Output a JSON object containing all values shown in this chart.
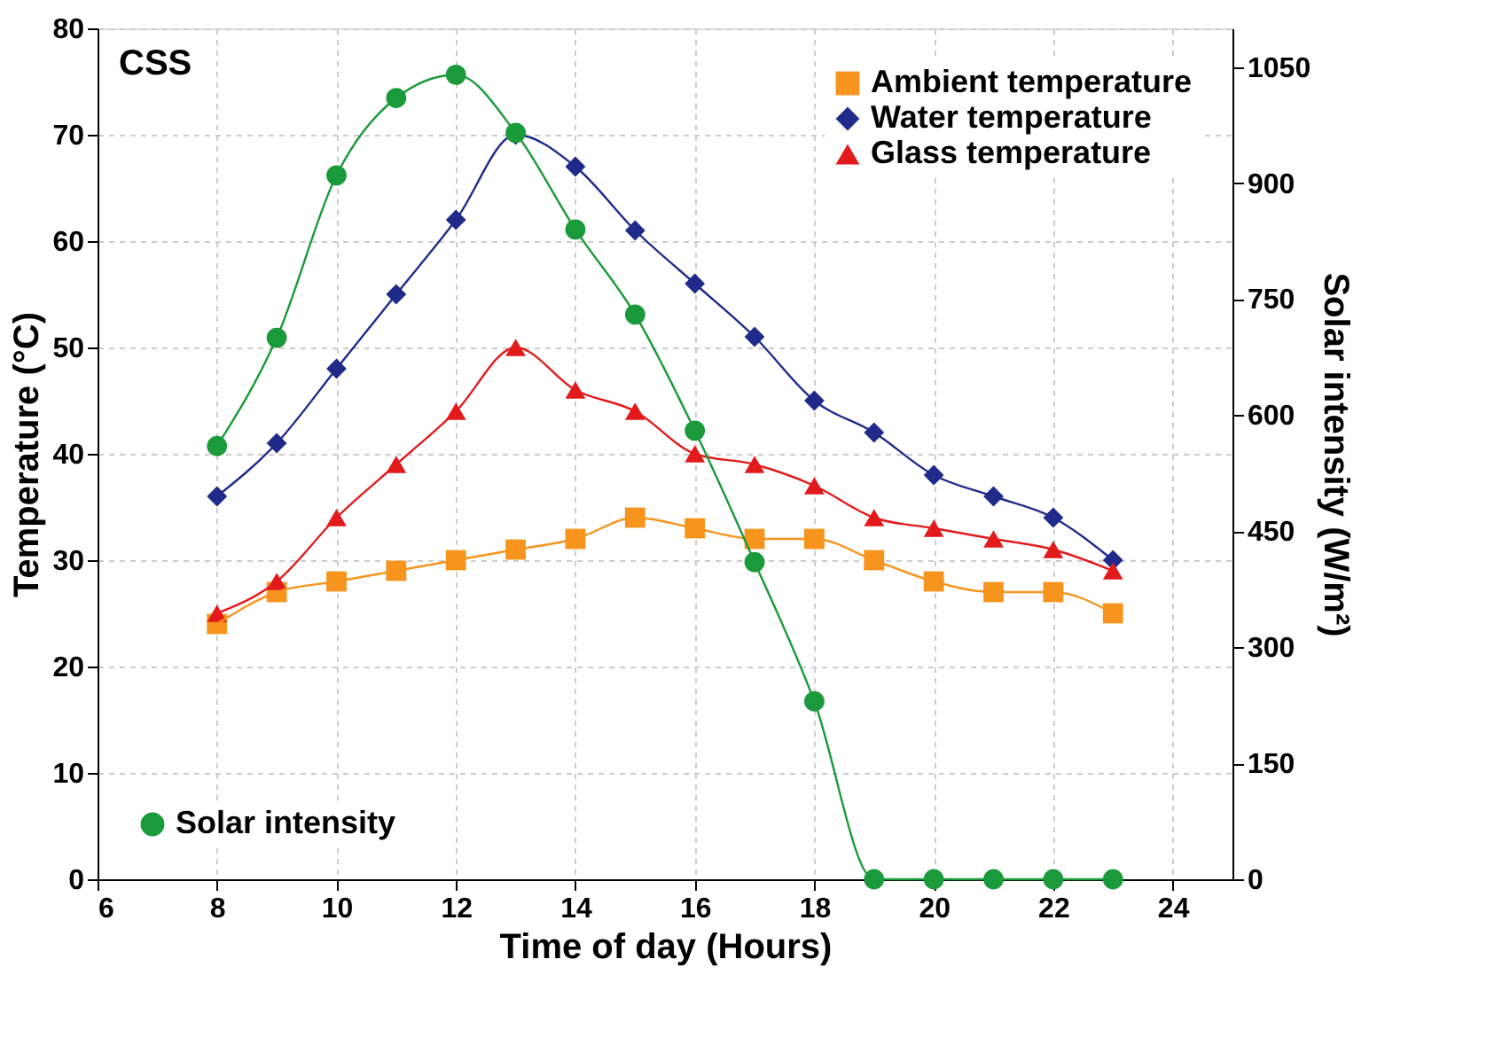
{
  "chart_data": {
    "type": "line",
    "xlabel": "Time of day (Hours)",
    "ylabel": "Temperature (°C)",
    "y2label": "Solar intensity (W/m²)",
    "annotations": [
      "CSS"
    ],
    "x": [
      8,
      9,
      10,
      11,
      12,
      13,
      14,
      15,
      16,
      17,
      18,
      19,
      20,
      21,
      22,
      23
    ],
    "xlim": [
      6,
      25
    ],
    "xticks": [
      6,
      8,
      10,
      12,
      14,
      16,
      18,
      20,
      22,
      24
    ],
    "ylim": [
      0,
      80
    ],
    "yticks": [
      0,
      10,
      20,
      30,
      40,
      50,
      60,
      70,
      80
    ],
    "y2lim": [
      0,
      1100
    ],
    "y2ticks": [
      0,
      150,
      300,
      450,
      600,
      750,
      900,
      1050
    ],
    "grid": true,
    "legend": "top right",
    "line_style": "solid",
    "series": [
      {
        "name": "Ambient temperature",
        "color": "#f7941d",
        "marker": "square",
        "values": [
          24,
          27,
          28,
          29,
          30,
          31,
          32,
          34,
          33,
          32,
          32,
          30,
          28,
          27,
          27,
          25
        ]
      },
      {
        "name": "Water temperature",
        "color": "#1f2a8a",
        "marker": "diamond",
        "values": [
          36,
          41,
          48,
          55,
          62,
          70,
          67,
          61,
          56,
          51,
          45,
          42,
          38,
          36,
          34,
          30
        ]
      },
      {
        "name": "Glass temperature",
        "color": "#e31a1c",
        "marker": "triangle",
        "values": [
          25,
          28,
          34,
          39,
          44,
          50,
          46,
          44,
          40,
          39,
          37,
          34,
          33,
          32,
          31,
          29
        ]
      },
      {
        "name": "Solar intensity",
        "color": "#1a9a3a",
        "marker": "circle",
        "axis": "y2",
        "values": [
          560,
          700,
          910,
          1010,
          1040,
          965,
          840,
          730,
          580,
          410,
          230,
          0,
          0,
          0,
          0,
          0
        ]
      }
    ]
  }
}
